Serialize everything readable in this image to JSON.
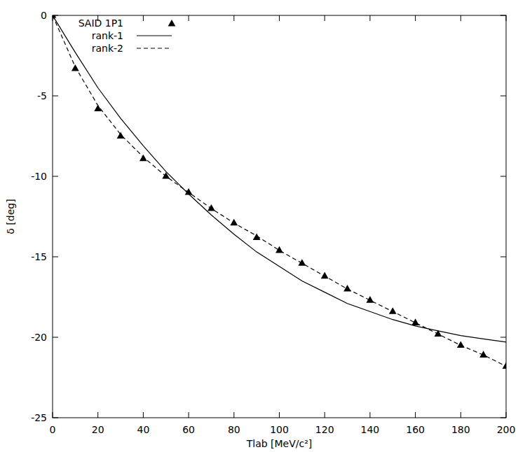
{
  "chart_data": {
    "type": "line",
    "x_label": "Tlab [MeV/c²]",
    "y_label": "δ [deg]",
    "x": [
      0,
      10,
      20,
      30,
      40,
      50,
      60,
      70,
      80,
      90,
      100,
      110,
      120,
      130,
      140,
      150,
      160,
      170,
      180,
      190,
      200
    ],
    "series": [
      {
        "name": "SAID 1P1",
        "type": "scatter",
        "marker": "triangle",
        "color": "#000000",
        "values": [
          0,
          -3.3,
          -5.8,
          -7.5,
          -8.9,
          -10.0,
          -11.0,
          -12.0,
          -12.9,
          -13.8,
          -14.6,
          -15.4,
          -16.2,
          -17.0,
          -17.7,
          -18.4,
          -19.1,
          -19.8,
          -20.5,
          -21.1,
          -21.8
        ]
      },
      {
        "name": "rank-1",
        "type": "line",
        "line_style": "solid",
        "color": "#000000",
        "values": [
          0,
          -2.3,
          -4.5,
          -6.4,
          -8.1,
          -9.7,
          -11.1,
          -12.4,
          -13.6,
          -14.7,
          -15.6,
          -16.5,
          -17.2,
          -17.9,
          -18.4,
          -18.9,
          -19.3,
          -19.6,
          -19.9,
          -20.1,
          -20.3
        ]
      },
      {
        "name": "rank-2",
        "type": "line",
        "line_style": "dashed",
        "color": "#000000",
        "values": [
          0,
          -3.2,
          -5.6,
          -7.4,
          -8.8,
          -10.0,
          -11.0,
          -12.0,
          -12.9,
          -13.7,
          -14.6,
          -15.4,
          -16.2,
          -17.0,
          -17.7,
          -18.4,
          -19.1,
          -19.8,
          -20.5,
          -21.1,
          -21.8
        ]
      }
    ],
    "xlim": [
      0,
      200
    ],
    "ylim": [
      -25,
      0
    ],
    "xticks": [
      0,
      20,
      40,
      60,
      80,
      100,
      120,
      140,
      160,
      180,
      200
    ],
    "yticks": [
      -25,
      -20,
      -15,
      -10,
      -5,
      0
    ],
    "grid": false,
    "legend": "top-left"
  }
}
